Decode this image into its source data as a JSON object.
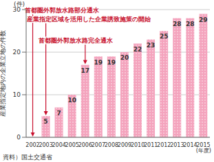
{
  "chart_data": {
    "type": "bar",
    "y_label": "産業指定地内の企業立地の件数",
    "y_unit": "(件)",
    "x_unit": "(年度)",
    "source": "資料）国土交通省",
    "categories": [
      "2002",
      "2003",
      "2004",
      "2005",
      "2006",
      "2007",
      "2008",
      "2009",
      "2010",
      "2011",
      "2012",
      "2013",
      "2014",
      "2015"
    ],
    "values": [
      null,
      5,
      7,
      10,
      17,
      19,
      19,
      20,
      22,
      23,
      25,
      28,
      28,
      29
    ],
    "color": "#f4a3bd",
    "ylim": [
      0,
      30
    ],
    "yticks": [
      0,
      10,
      20,
      30
    ],
    "grid": true,
    "data_labels": true,
    "annotations": [
      {
        "text": "首都圏外郭放水路部分通水",
        "x": "2002"
      },
      {
        "text": "産業指定区域を活用した企業誘致施策の開始",
        "x": "2003"
      },
      {
        "text": "首都圏外郭放水路完全通水",
        "x": "2006"
      }
    ]
  }
}
